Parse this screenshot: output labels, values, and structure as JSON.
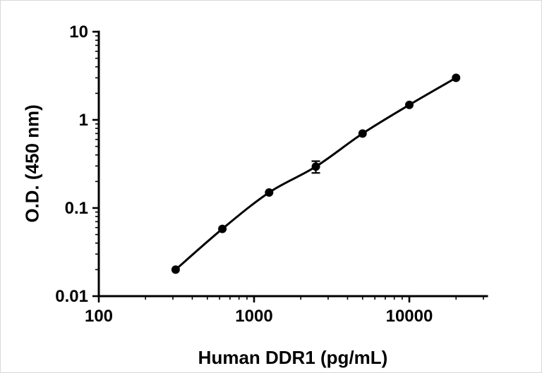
{
  "chart_data": {
    "type": "scatter",
    "title": "",
    "xlabel": "Human DDR1 (pg/mL)",
    "ylabel": "O.D. (450 nm)",
    "x_scale": "log",
    "y_scale": "log",
    "xlim": [
      100,
      31623
    ],
    "ylim": [
      0.01,
      10
    ],
    "grid": false,
    "legend": "none",
    "line_color": "#000000",
    "marker_color": "#000000",
    "marker_shape": "filled-circle",
    "xticks": [
      {
        "value": 100,
        "label": "100"
      },
      {
        "value": 1000,
        "label": "1000"
      },
      {
        "value": 10000,
        "label": "10000"
      }
    ],
    "yticks": [
      {
        "value": 0.01,
        "label": "0.01"
      },
      {
        "value": 0.1,
        "label": "0.1"
      },
      {
        "value": 1,
        "label": "1"
      },
      {
        "value": 10,
        "label": "10"
      }
    ],
    "points": [
      {
        "x": 312.5,
        "y": 0.02,
        "error": 0
      },
      {
        "x": 625,
        "y": 0.058,
        "error": 0
      },
      {
        "x": 1250,
        "y": 0.15,
        "error": 0
      },
      {
        "x": 2500,
        "y": 0.295,
        "error": 0.045
      },
      {
        "x": 5000,
        "y": 0.7,
        "error": 0
      },
      {
        "x": 10000,
        "y": 1.48,
        "error": 0
      },
      {
        "x": 20000,
        "y": 3.0,
        "error": 0
      }
    ]
  }
}
